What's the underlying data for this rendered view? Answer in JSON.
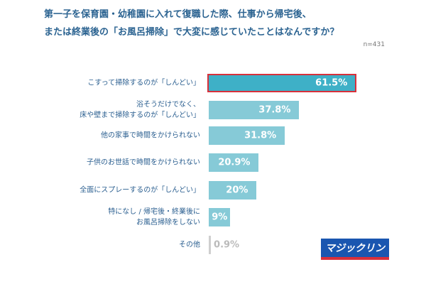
{
  "chart_data": {
    "type": "bar",
    "orientation": "horizontal",
    "title": "第一子を保育園・幼稚園に入れて復職した際、仕事から帰宅後、\nまたは終業後の「お風呂掃除」で大変に感じていたことはなんですか？",
    "subtitle": "n=431",
    "categories": [
      "こすって掃除するのが「しんどい」",
      "浴そうだけでなく、\n床や壁まで掃除するのが「しんどい」",
      "他の家事で時間をかけられない",
      "子供のお世話で時間をかけられない",
      "全面にスプレーするのが「しんどい」",
      "特になし / 帰宅後・終業後に\nお風呂掃除をしない",
      "その他"
    ],
    "values": [
      61.5,
      37.8,
      31.8,
      20.9,
      20,
      9,
      0.9
    ],
    "value_labels": [
      "61.5%",
      "37.8%",
      "31.8%",
      "20.9%",
      "20%",
      "9%",
      "0.9%"
    ],
    "colors": [
      "#3eb0c7",
      "#86cad7",
      "#86cad7",
      "#86cad7",
      "#86cad7",
      "#86cad7",
      "#cfcfcf"
    ],
    "highlight_index": 0,
    "highlight_border": "#d8303b",
    "logo": "マジックリン"
  }
}
